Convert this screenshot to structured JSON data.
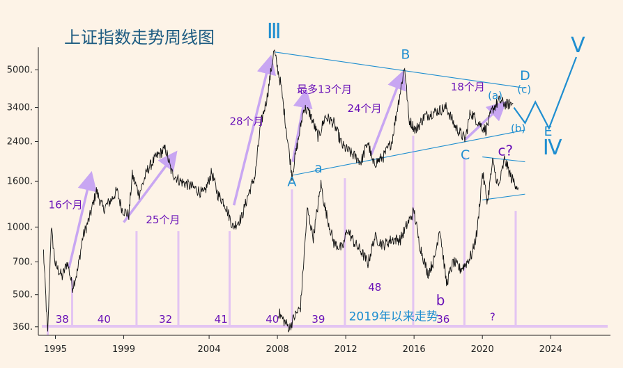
{
  "chart_data": {
    "type": "line",
    "title": "上证指数走势周线图",
    "xlabel": "",
    "ylabel": "",
    "y_scale": "log",
    "ylim": [
      330,
      6300
    ],
    "xlim": [
      1994.0,
      2027.5
    ],
    "x_ticks": [
      "1995",
      "1999",
      "2004",
      "2008",
      "2012",
      "2016",
      "2020",
      "2024"
    ],
    "x_tick_values": [
      1995,
      1999,
      2004,
      2008,
      2012,
      2016,
      2020,
      2024
    ],
    "y_ticks": [
      "5000.",
      "3400.",
      "2400.",
      "1600.",
      "1000.",
      "700.",
      "500.",
      "360."
    ],
    "y_tick_values": [
      5000,
      3400,
      2400,
      1600,
      1000,
      700,
      500,
      360
    ],
    "grid": false,
    "colors": {
      "price": "#111111",
      "wave": "#1f8ed0",
      "arrow": "#c8a6f2",
      "bar": "#e3c4f2",
      "text_purple": "#6a12b8",
      "background": "#fdf3e7"
    },
    "series": [
      {
        "name": "",
        "values": [
          [
            1994.3,
            780
          ],
          [
            1994.55,
            330
          ],
          [
            1994.75,
            1000
          ],
          [
            1995.0,
            680
          ],
          [
            1995.4,
            600
          ],
          [
            1995.7,
            700
          ],
          [
            1996.0,
            540
          ],
          [
            1996.3,
            640
          ],
          [
            1996.6,
            900
          ],
          [
            1997.0,
            1100
          ],
          [
            1997.4,
            1450
          ],
          [
            1997.8,
            1200
          ],
          [
            1998.3,
            1330
          ],
          [
            1998.6,
            1450
          ],
          [
            1998.9,
            1200
          ],
          [
            1999.3,
            1130
          ],
          [
            1999.5,
            1700
          ],
          [
            1999.9,
            1400
          ],
          [
            2000.4,
            1800
          ],
          [
            2000.9,
            2050
          ],
          [
            2001.45,
            2230
          ],
          [
            2001.8,
            1750
          ],
          [
            2002.3,
            1600
          ],
          [
            2002.7,
            1550
          ],
          [
            2003.2,
            1480
          ],
          [
            2003.7,
            1400
          ],
          [
            2004.15,
            1750
          ],
          [
            2004.5,
            1400
          ],
          [
            2004.9,
            1280
          ],
          [
            2005.4,
            1000
          ],
          [
            2005.9,
            1100
          ],
          [
            2006.3,
            1400
          ],
          [
            2006.7,
            1700
          ],
          [
            2007.0,
            2800
          ],
          [
            2007.4,
            3800
          ],
          [
            2007.8,
            6100
          ],
          [
            2008.2,
            4300
          ],
          [
            2008.5,
            2800
          ],
          [
            2008.85,
            1700
          ],
          [
            2009.2,
            2400
          ],
          [
            2009.55,
            3400
          ],
          [
            2009.9,
            3200
          ],
          [
            2010.4,
            2500
          ],
          [
            2010.8,
            3100
          ],
          [
            2011.3,
            2900
          ],
          [
            2011.8,
            2300
          ],
          [
            2012.4,
            2100
          ],
          [
            2012.9,
            1950
          ],
          [
            2013.3,
            2400
          ],
          [
            2013.6,
            1900
          ],
          [
            2014.2,
            2050
          ],
          [
            2014.7,
            2400
          ],
          [
            2015.0,
            3300
          ],
          [
            2015.45,
            5180
          ],
          [
            2015.7,
            3000
          ],
          [
            2016.1,
            2700
          ],
          [
            2016.6,
            3100
          ],
          [
            2017.2,
            3250
          ],
          [
            2017.9,
            3400
          ],
          [
            2018.4,
            2800
          ],
          [
            2019.0,
            2450
          ],
          [
            2019.3,
            3250
          ],
          [
            2019.8,
            2900
          ],
          [
            2020.2,
            2700
          ],
          [
            2020.6,
            3350
          ],
          [
            2021.0,
            3650
          ],
          [
            2021.4,
            3500
          ],
          [
            2021.8,
            3550
          ]
        ]
      },
      {
        "name": "",
        "values": [
          [
            2008.05,
            420
          ],
          [
            2008.3,
            390
          ],
          [
            2008.7,
            355
          ],
          [
            2009.0,
            400
          ],
          [
            2009.35,
            440
          ],
          [
            2009.75,
            1200
          ],
          [
            2010.1,
            900
          ],
          [
            2010.55,
            1550
          ],
          [
            2010.8,
            1200
          ],
          [
            2011.3,
            850
          ],
          [
            2011.8,
            800
          ],
          [
            2012.1,
            980
          ],
          [
            2012.5,
            850
          ],
          [
            2012.9,
            780
          ],
          [
            2013.3,
            690
          ],
          [
            2013.7,
            900
          ],
          [
            2014.2,
            830
          ],
          [
            2014.7,
            880
          ],
          [
            2015.2,
            880
          ],
          [
            2015.6,
            1030
          ],
          [
            2016.0,
            1180
          ],
          [
            2016.3,
            850
          ],
          [
            2016.8,
            620
          ],
          [
            2017.2,
            720
          ],
          [
            2017.5,
            1000
          ],
          [
            2017.9,
            560
          ],
          [
            2018.3,
            700
          ],
          [
            2018.7,
            650
          ],
          [
            2019.0,
            680
          ],
          [
            2019.4,
            760
          ],
          [
            2019.7,
            960
          ],
          [
            2020.0,
            1750
          ],
          [
            2020.3,
            1300
          ],
          [
            2020.6,
            1950
          ],
          [
            2020.95,
            1500
          ],
          [
            2021.3,
            2000
          ],
          [
            2021.7,
            1650
          ],
          [
            2022.1,
            1500
          ]
        ]
      }
    ],
    "trendlines": [
      {
        "from": [
          2007.85,
          6000
        ],
        "to": [
          2022.5,
          4150
        ]
      },
      {
        "from": [
          2008.9,
          1700
        ],
        "to": [
          2022.5,
          2700
        ]
      },
      {
        "from": [
          2020.0,
          2050
        ],
        "to": [
          2022.5,
          1950
        ]
      },
      {
        "from": [
          2020.0,
          1320
        ],
        "to": [
          2022.5,
          1400
        ]
      }
    ],
    "projection": [
      [
        2021.85,
        3400
      ],
      [
        2022.5,
        2900
      ],
      [
        2023.1,
        3600
      ],
      [
        2023.9,
        2750
      ],
      [
        2025.5,
        5700
      ]
    ],
    "arrows": [
      {
        "from": [
          1995.8,
          660
        ],
        "to": [
          1997.0,
          1610
        ]
      },
      {
        "from": [
          1999.0,
          1050
        ],
        "to": [
          2001.8,
          2020
        ]
      },
      {
        "from": [
          2005.45,
          1250
        ],
        "to": [
          2007.5,
          5300
        ]
      },
      {
        "from": [
          2008.9,
          1950
        ],
        "to": [
          2009.6,
          3750
        ]
      },
      {
        "from": [
          2013.5,
          2100
        ],
        "to": [
          2015.2,
          4550
        ]
      },
      {
        "from": [
          2019.0,
          2450
        ],
        "to": [
          2021.0,
          3400
        ]
      }
    ],
    "bars": [
      {
        "x": 1994.55,
        "top": 330
      },
      {
        "x": 1995.98,
        "top": 590
      },
      {
        "x": 1999.75,
        "top": 960
      },
      {
        "x": 2002.2,
        "top": 960
      },
      {
        "x": 2005.2,
        "top": 960
      },
      {
        "x": 2008.85,
        "top": 1470
      },
      {
        "x": 2011.95,
        "top": 1650
      },
      {
        "x": 2015.95,
        "top": 2550
      },
      {
        "x": 2018.95,
        "top": 2050
      },
      {
        "x": 2021.95,
        "top": 1180
      }
    ],
    "annotations": [
      {
        "text": "Ⅲ",
        "x": 2007.8,
        "y": 6900,
        "role": "wave-big"
      },
      {
        "text": "A",
        "x": 2008.85,
        "y": 1520,
        "role": "wave"
      },
      {
        "text": "a",
        "x": 2010.4,
        "y": 1750,
        "role": "wave"
      },
      {
        "text": "B",
        "x": 2015.5,
        "y": 5600,
        "role": "wave"
      },
      {
        "text": "C",
        "x": 2019.0,
        "y": 2000,
        "role": "wave"
      },
      {
        "text": "c?",
        "x": 2021.35,
        "y": 2080,
        "role": "wave-purple"
      },
      {
        "text": "b",
        "x": 2017.55,
        "y": 450,
        "role": "wave-purple"
      },
      {
        "text": "(a)",
        "x": 2020.75,
        "y": 3700,
        "role": "wave-small"
      },
      {
        "text": "D",
        "x": 2022.5,
        "y": 4500,
        "role": "wave"
      },
      {
        "text": "(c)",
        "x": 2022.45,
        "y": 3950,
        "role": "wave-small"
      },
      {
        "text": "(b)",
        "x": 2022.1,
        "y": 2650,
        "role": "wave-small"
      },
      {
        "text": "E",
        "x": 2023.85,
        "y": 2550,
        "role": "wave"
      },
      {
        "text": "Ⅳ",
        "x": 2024.1,
        "y": 2100,
        "role": "wave-big"
      },
      {
        "text": "Ⅴ",
        "x": 2025.6,
        "y": 6000,
        "role": "wave-big"
      },
      {
        "text": "16个月",
        "x": 1995.6,
        "y": 1210,
        "role": "purple"
      },
      {
        "text": "25个月",
        "x": 2001.3,
        "y": 1040,
        "role": "purple"
      },
      {
        "text": "28个月",
        "x": 2006.2,
        "y": 2850,
        "role": "purple"
      },
      {
        "text": "最多13个月",
        "x": 2010.75,
        "y": 3950,
        "role": "purple"
      },
      {
        "text": "24个月",
        "x": 2013.1,
        "y": 3250,
        "role": "purple"
      },
      {
        "text": "18个月",
        "x": 2019.15,
        "y": 4050,
        "role": "purple"
      },
      {
        "text": "38",
        "x": 1995.4,
        "y": 375,
        "role": "purple"
      },
      {
        "text": "40",
        "x": 1997.85,
        "y": 375,
        "role": "purple"
      },
      {
        "text": "32",
        "x": 2001.45,
        "y": 375,
        "role": "purple"
      },
      {
        "text": "41",
        "x": 2004.7,
        "y": 375,
        "role": "purple"
      },
      {
        "text": "40",
        "x": 2007.7,
        "y": 375,
        "role": "purple"
      },
      {
        "text": "39",
        "x": 2010.4,
        "y": 375,
        "role": "purple"
      },
      {
        "text": "48",
        "x": 2013.7,
        "y": 520,
        "role": "purple"
      },
      {
        "text": "36",
        "x": 2017.7,
        "y": 375,
        "role": "purple"
      },
      {
        "text": "?",
        "x": 2020.6,
        "y": 385,
        "role": "purple"
      },
      {
        "text": "2019年以来走势",
        "x": 2014.8,
        "y": 385,
        "role": "blue-label"
      }
    ]
  }
}
